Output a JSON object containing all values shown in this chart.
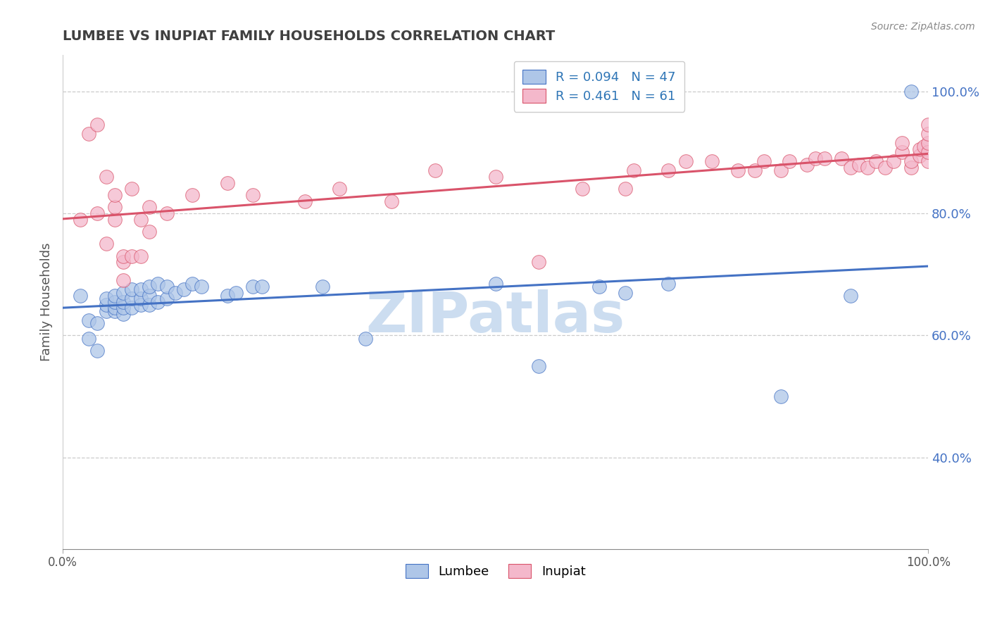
{
  "title": "LUMBEE VS INUPIAT FAMILY HOUSEHOLDS CORRELATION CHART",
  "source_text": "Source: ZipAtlas.com",
  "ylabel": "Family Households",
  "xlim": [
    0.0,
    1.0
  ],
  "ylim": [
    0.25,
    1.06
  ],
  "lumbee_R": 0.094,
  "lumbee_N": 47,
  "inupiat_R": 0.461,
  "inupiat_N": 61,
  "lumbee_color": "#aec6e8",
  "inupiat_color": "#f4b8cb",
  "lumbee_line_color": "#4472c4",
  "inupiat_line_color": "#d9536a",
  "title_color": "#404040",
  "legend_R_color": "#2e75b6",
  "ytick_color": "#4472c4",
  "lumbee_x": [
    0.02,
    0.03,
    0.03,
    0.04,
    0.04,
    0.05,
    0.05,
    0.05,
    0.06,
    0.06,
    0.06,
    0.06,
    0.07,
    0.07,
    0.07,
    0.07,
    0.08,
    0.08,
    0.08,
    0.09,
    0.09,
    0.09,
    0.1,
    0.1,
    0.1,
    0.11,
    0.11,
    0.12,
    0.12,
    0.13,
    0.14,
    0.15,
    0.16,
    0.19,
    0.2,
    0.22,
    0.23,
    0.3,
    0.35,
    0.5,
    0.55,
    0.62,
    0.65,
    0.7,
    0.83,
    0.91,
    0.98
  ],
  "lumbee_y": [
    0.665,
    0.595,
    0.625,
    0.575,
    0.62,
    0.64,
    0.65,
    0.66,
    0.64,
    0.645,
    0.655,
    0.665,
    0.635,
    0.645,
    0.655,
    0.67,
    0.645,
    0.66,
    0.675,
    0.65,
    0.66,
    0.675,
    0.65,
    0.665,
    0.68,
    0.655,
    0.685,
    0.66,
    0.68,
    0.67,
    0.675,
    0.685,
    0.68,
    0.665,
    0.67,
    0.68,
    0.68,
    0.68,
    0.595,
    0.685,
    0.55,
    0.68,
    0.67,
    0.685,
    0.5,
    0.665,
    1.0
  ],
  "inupiat_x": [
    0.02,
    0.03,
    0.04,
    0.04,
    0.05,
    0.05,
    0.06,
    0.06,
    0.06,
    0.07,
    0.07,
    0.07,
    0.08,
    0.08,
    0.09,
    0.09,
    0.1,
    0.1,
    0.12,
    0.15,
    0.19,
    0.22,
    0.28,
    0.32,
    0.38,
    0.43,
    0.5,
    0.55,
    0.6,
    0.65,
    0.66,
    0.7,
    0.72,
    0.75,
    0.78,
    0.8,
    0.81,
    0.83,
    0.84,
    0.86,
    0.87,
    0.88,
    0.9,
    0.91,
    0.92,
    0.93,
    0.94,
    0.95,
    0.96,
    0.97,
    0.97,
    0.98,
    0.98,
    0.99,
    0.99,
    0.995,
    1.0,
    1.0,
    1.0,
    1.0,
    1.0
  ],
  "inupiat_y": [
    0.79,
    0.93,
    0.945,
    0.8,
    0.86,
    0.75,
    0.79,
    0.81,
    0.83,
    0.69,
    0.72,
    0.73,
    0.73,
    0.84,
    0.73,
    0.79,
    0.77,
    0.81,
    0.8,
    0.83,
    0.85,
    0.83,
    0.82,
    0.84,
    0.82,
    0.87,
    0.86,
    0.72,
    0.84,
    0.84,
    0.87,
    0.87,
    0.885,
    0.885,
    0.87,
    0.87,
    0.885,
    0.87,
    0.885,
    0.88,
    0.89,
    0.89,
    0.89,
    0.875,
    0.88,
    0.875,
    0.885,
    0.875,
    0.885,
    0.9,
    0.915,
    0.875,
    0.885,
    0.895,
    0.905,
    0.91,
    0.885,
    0.9,
    0.915,
    0.93,
    0.945
  ],
  "yticks": [
    0.4,
    0.6,
    0.8,
    1.0
  ],
  "ytick_labels": [
    "40.0%",
    "60.0%",
    "80.0%",
    "100.0%"
  ],
  "grid_color": "#cccccc",
  "background_color": "#ffffff",
  "watermark_text": "ZIPatlas",
  "watermark_color": "#ccddf0"
}
